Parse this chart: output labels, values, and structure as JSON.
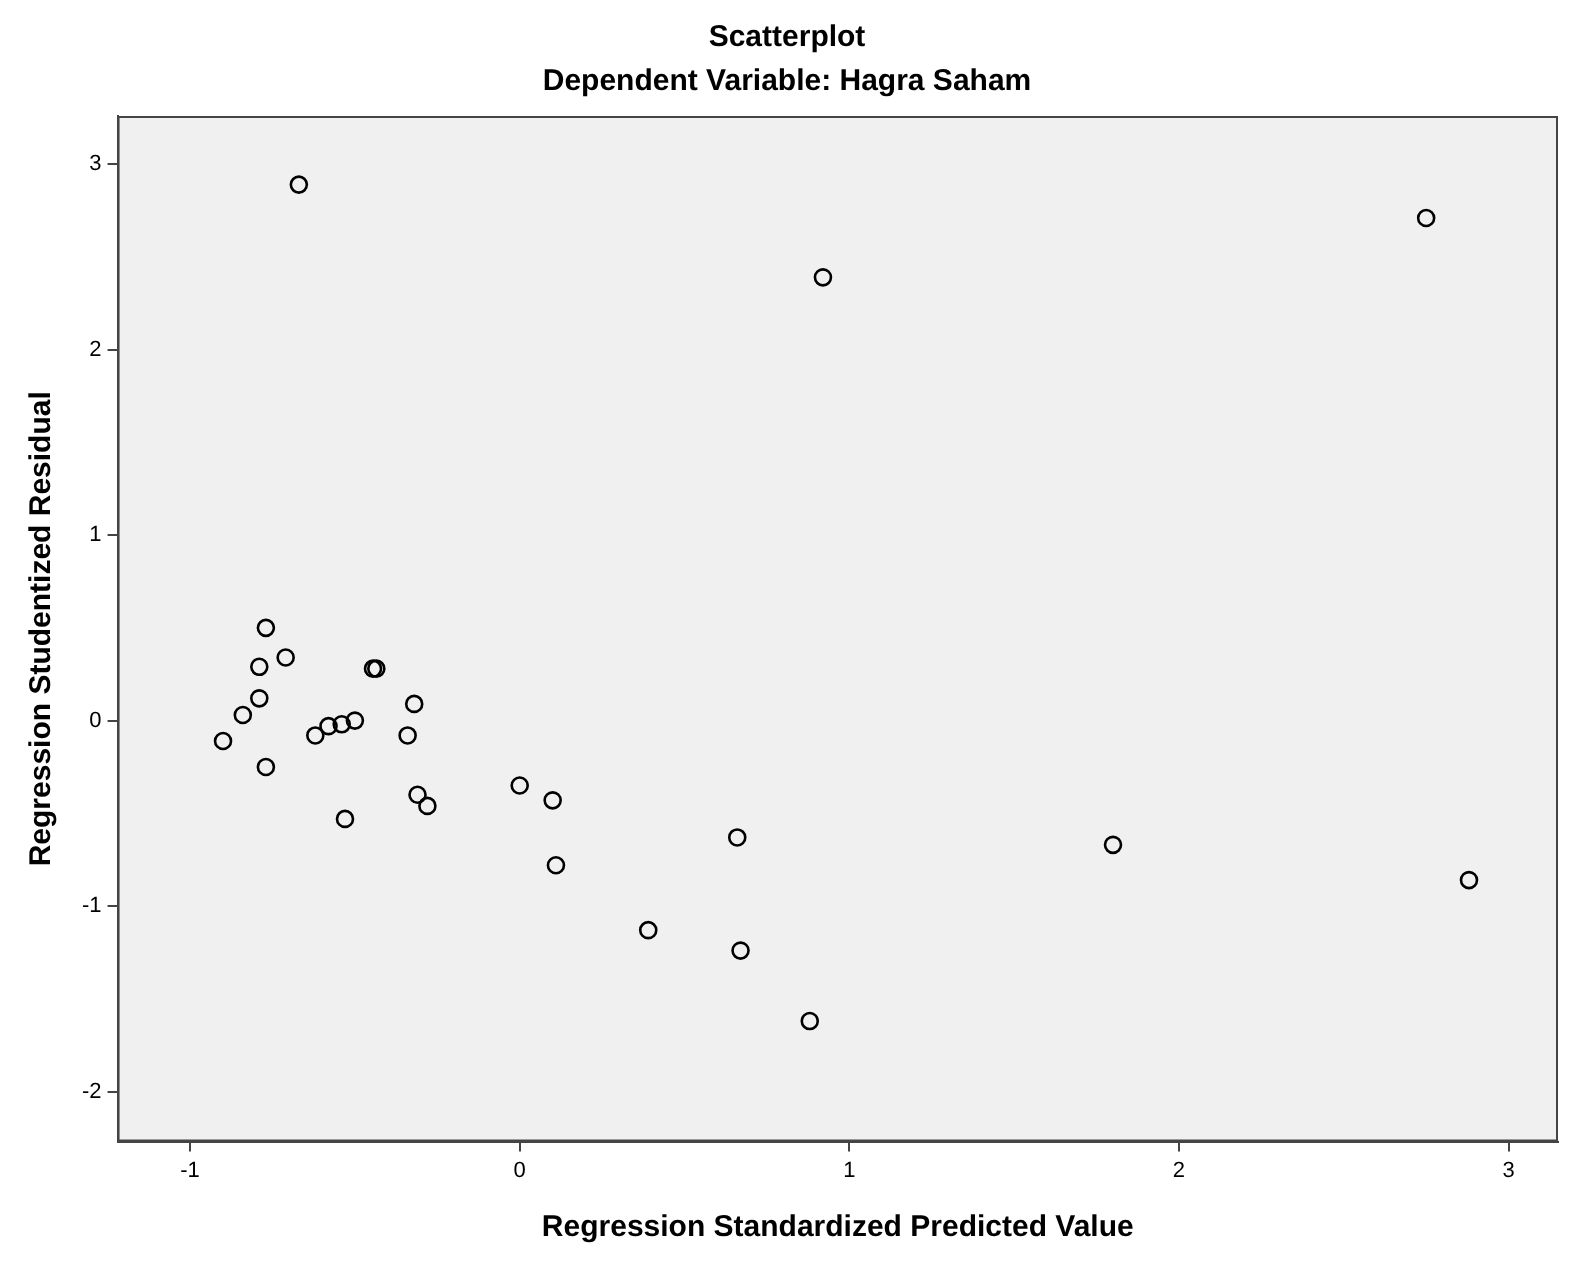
{
  "chart_data": {
    "type": "scatter",
    "title": "Scatterplot",
    "subtitle": "Dependent Variable: Hagra Saham",
    "xlabel": "Regression Standardized Predicted Value",
    "ylabel": "Regression Studentized Residual",
    "x": [
      -0.67,
      0.92,
      2.75,
      -0.77,
      -0.79,
      -0.71,
      -0.445,
      -0.435,
      -0.79,
      -0.84,
      -0.9,
      -0.77,
      -0.62,
      -0.58,
      -0.54,
      -0.5,
      -0.32,
      -0.34,
      -0.53,
      -0.31,
      -0.28,
      0.0,
      0.1,
      0.11,
      0.39,
      0.66,
      0.67,
      0.88,
      1.8,
      2.88
    ],
    "series": [
      {
        "color": "#000000",
        "values": [
          2.89,
          2.39,
          2.71,
          0.5,
          0.29,
          0.34,
          0.28,
          0.28,
          0.12,
          0.03,
          -0.11,
          -0.25,
          -0.08,
          -0.03,
          -0.02,
          0.0,
          0.09,
          -0.08,
          -0.53,
          -0.4,
          -0.46,
          -0.35,
          -0.43,
          -0.78,
          -1.13,
          -0.63,
          -1.24,
          -1.62,
          -0.67,
          -0.86
        ]
      }
    ],
    "xlim": [
      -1.22,
      3.15
    ],
    "ylim": [
      -2.27,
      3.26
    ],
    "xticks": [
      -1,
      0,
      1,
      2,
      3
    ],
    "yticks": [
      -2,
      -1,
      0,
      1,
      2,
      3
    ],
    "grid": false,
    "legend": false,
    "marker": "circle"
  }
}
